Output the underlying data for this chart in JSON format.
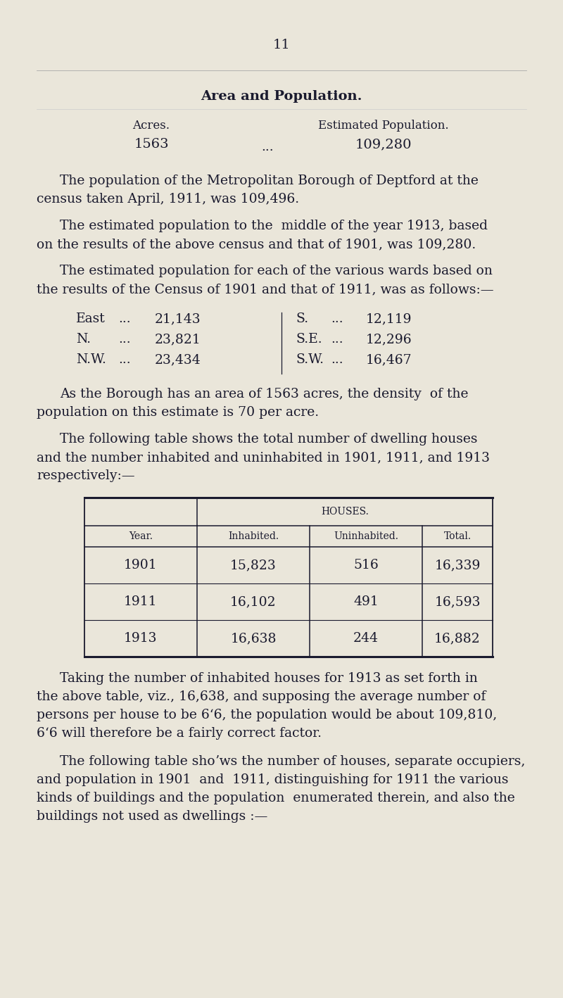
{
  "page_number": "11",
  "title": "Area and Population.",
  "acres_label": "Acres.",
  "acres_value": "1563",
  "dots": "...",
  "est_pop_label": "Estimated Population.",
  "est_pop_value": "109,280",
  "bg_color": "#eae6da",
  "text_color": "#1a1a2e",
  "para1_lines": [
    "The population of the Metropolitan Borough of Deptford at the",
    "census taken April, 1911, was 109,496."
  ],
  "para2_lines": [
    "The estimated population to the  middle of the year 1913, based",
    "on the results of the above census and that of 1901, was 109,280."
  ],
  "para3_lines": [
    "The estimated population for each of the various wards based on",
    "the results of the Census of 1901 and that of 1911, was as follows:—"
  ],
  "wards_left": [
    [
      "East",
      "...",
      "21,143"
    ],
    [
      "N.",
      "...",
      "23,821"
    ],
    [
      "N.W.",
      "...",
      "23,434"
    ]
  ],
  "wards_right": [
    [
      "S.",
      "...",
      "12,119"
    ],
    [
      "S.E.",
      "...",
      "12,296"
    ],
    [
      "S.W.",
      "...",
      "16,467"
    ]
  ],
  "para4_lines": [
    "As the Borough has an area of 1563 acres, the density  of the",
    "population on this estimate is 70 per acre."
  ],
  "para5_lines": [
    "The following table shows the total number of dwelling houses",
    "and the number inhabited and uninhabited in 1901, 1911, and 1913",
    "respectively:—"
  ],
  "table_header_main": "HOUSES.",
  "table_col_headers": [
    "Year.",
    "Inhabited.",
    "Uninhabited.",
    "Total."
  ],
  "table_rows": [
    [
      "1901",
      "15,823",
      "516",
      "16,339"
    ],
    [
      "1911",
      "16,102",
      "491",
      "16,593"
    ],
    [
      "1913",
      "16,638",
      "244",
      "16,882"
    ]
  ],
  "para6_lines": [
    "Taking the number of inhabited houses for 1913 as set forth in",
    "the above table, viz., 16,638, and supposing the average number of",
    "persons per house to be 6‘6, the population would be about 109,810,",
    "6‘6 will therefore be a fairly correct factor."
  ],
  "para7_lines": [
    "The following table shoʼws the number of houses, separate occupiers,",
    "and population in 1901  and  1911, distinguishing for 1911 the various",
    "kinds of buildings and the population  enumerated therein, and also the",
    "buildings not used as dwellings :—"
  ]
}
